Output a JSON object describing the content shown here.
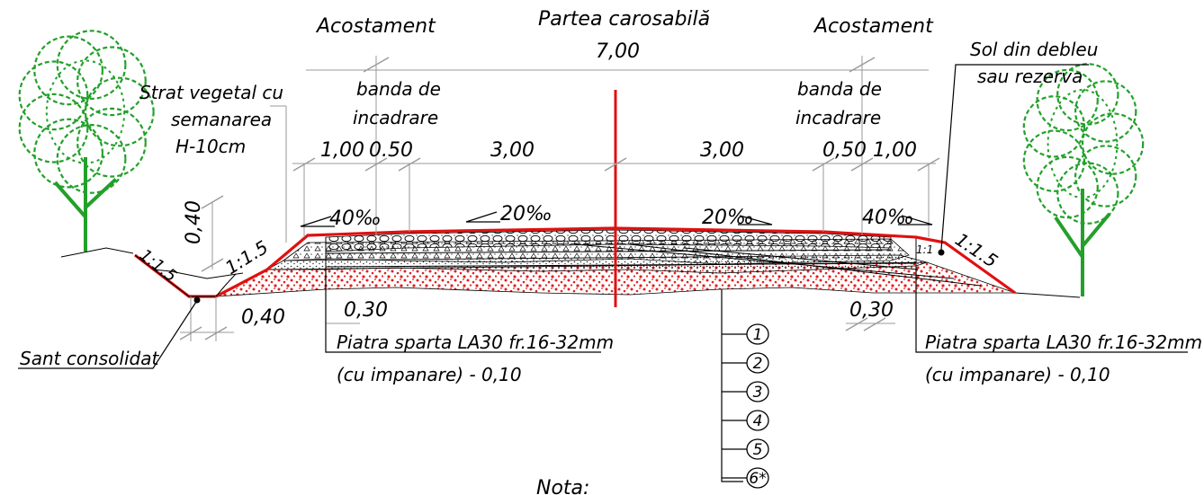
{
  "colors": {
    "accent_red": "#e01010",
    "tree_green": "#22a02a",
    "subbase_red": "#e02020",
    "line_black": "#000000",
    "dimension_gray": "#9a9a9a"
  },
  "labels": {
    "acostament_left": "Acostament",
    "acostament_right": "Acostament",
    "carriageway": "Partea carosabilă",
    "carriageway_width": "7,00",
    "vegetal_1": "Strat vegetal cu",
    "vegetal_2": "semanarea",
    "vegetal_3": "H-10cm",
    "soil_1": "Sol din debleu",
    "soil_2": "sau rezerva",
    "banda_left_1": "banda de",
    "banda_left_2": "incadrare",
    "banda_right_1": "banda de",
    "banda_right_2": "incadrare",
    "dim_left_100": "1,00",
    "dim_left_050": "0.50",
    "dim_left_300": "3,00",
    "dim_right_300": "3,00",
    "dim_right_050": "0,50",
    "dim_right_100": "1,00",
    "slope_left_40": "40‰",
    "slope_left_20": "20‰",
    "slope_right_20": "20‰",
    "slope_right_40": "40‰",
    "height_040": "0,40",
    "width_040": "0,40",
    "ratio_ditch": "1:1.5",
    "ratio_left": "1:1.5",
    "ratio_right": "1:1.5",
    "ratio_small": "1:1",
    "dim_030_left": "0,30",
    "dim_030_right": "0,30",
    "ditch": "Sant consolidat",
    "stone_left_1": "Piatra sparta LA30 fr.16-32mm",
    "stone_left_2": "(cu impanare) - 0,10",
    "stone_right_1": "Piatra sparta LA30 fr.16-32mm",
    "stone_right_2": "(cu impanare) - 0,10",
    "nota": "Nota:"
  },
  "layers": [
    "1",
    "2",
    "3",
    "4",
    "5",
    "6*"
  ]
}
